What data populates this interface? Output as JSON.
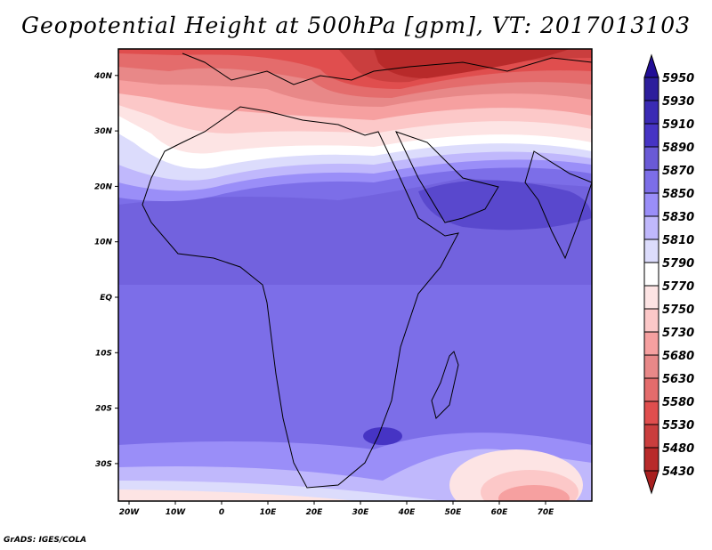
{
  "title": "Geopotential Height at 500hPa [gpm], VT: 2017013103",
  "credit": "GrADS: IGES/COLA",
  "chart_data": {
    "type": "heatmap",
    "title": "Geopotential Height at 500hPa [gpm], VT: 2017013103",
    "variable": "Geopotential Height at 500hPa",
    "units": "gpm",
    "valid_time": "2017013103",
    "lon_range": [
      -22,
      80
    ],
    "lat_range": [
      -37,
      45
    ],
    "x_ticks": [
      {
        "value": -20,
        "label": "20W"
      },
      {
        "value": -10,
        "label": "10W"
      },
      {
        "value": 0,
        "label": "0"
      },
      {
        "value": 10,
        "label": "10E"
      },
      {
        "value": 20,
        "label": "20E"
      },
      {
        "value": 30,
        "label": "30E"
      },
      {
        "value": 40,
        "label": "40E"
      },
      {
        "value": 50,
        "label": "50E"
      },
      {
        "value": 60,
        "label": "60E"
      },
      {
        "value": 70,
        "label": "70E"
      }
    ],
    "y_ticks": [
      {
        "value": 40,
        "label": "40N"
      },
      {
        "value": 30,
        "label": "30N"
      },
      {
        "value": 20,
        "label": "20N"
      },
      {
        "value": 10,
        "label": "10N"
      },
      {
        "value": 0,
        "label": "EQ"
      },
      {
        "value": -10,
        "label": "10S"
      },
      {
        "value": -20,
        "label": "20S"
      },
      {
        "value": -30,
        "label": "30S"
      }
    ],
    "colorbar": {
      "levels": [
        "5950",
        "5930",
        "5910",
        "5890",
        "5870",
        "5850",
        "5830",
        "5810",
        "5790",
        "5770",
        "5750",
        "5730",
        "5680",
        "5630",
        "5580",
        "5530",
        "5480",
        "5430"
      ],
      "above_color": "#220e96",
      "below_color": "#a82020",
      "colors": [
        "#2d1e9c",
        "#3a2ab4",
        "#4634c4",
        "#6a5ad6",
        "#7c6ee8",
        "#9a8ef8",
        "#c0b8fc",
        "#dcdcfc",
        "#ffffff",
        "#fde4e4",
        "#fcc8c8",
        "#f6a0a0",
        "#e88888",
        "#e46c6c",
        "#e04e4e",
        "#ca3e3e",
        "#b82a2a"
      ]
    }
  }
}
